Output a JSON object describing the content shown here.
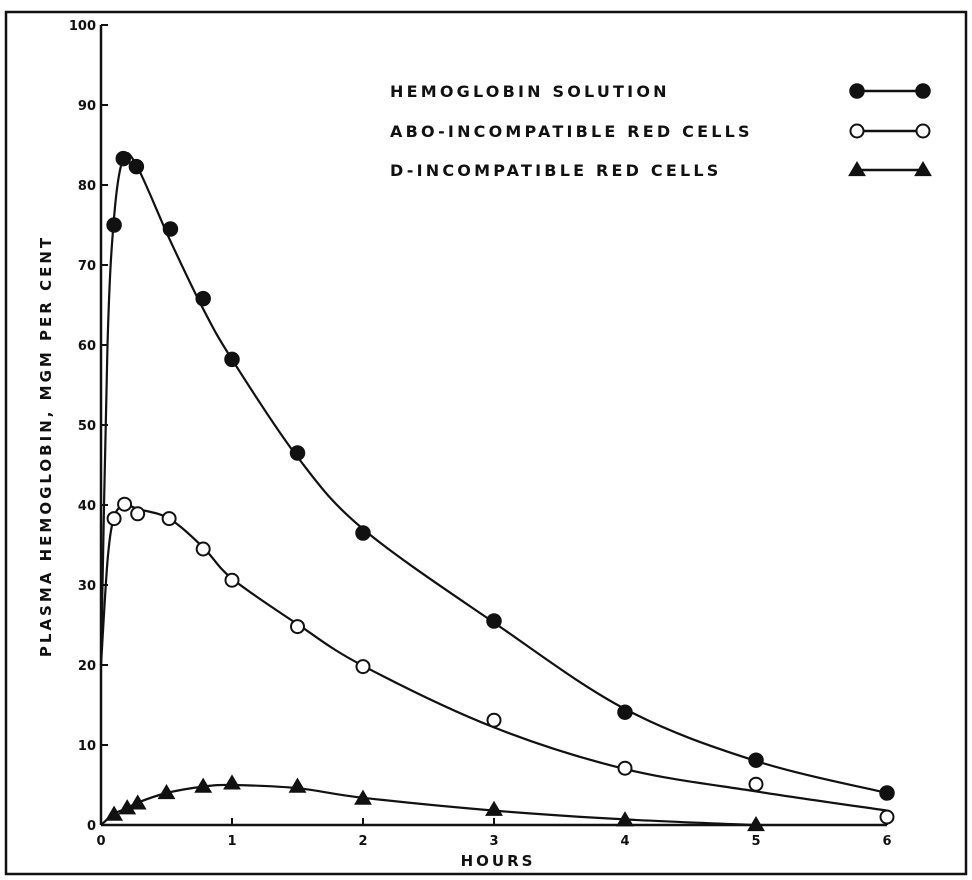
{
  "chart_data": {
    "type": "line",
    "title": "",
    "xlabel": "HOURS",
    "ylabel": "PLASMA HEMOGLOBIN, MGM PER CENT",
    "xlim": [
      0,
      6
    ],
    "ylim": [
      0,
      100
    ],
    "x_ticks": [
      0,
      1,
      2,
      3,
      4,
      5,
      6
    ],
    "y_ticks": [
      0,
      10,
      20,
      30,
      40,
      50,
      60,
      70,
      80,
      90,
      100
    ],
    "grid": false,
    "legend_position": "top-right",
    "series": [
      {
        "name": "HEMOGLOBIN SOLUTION",
        "marker": "filled-circle",
        "x": [
          0.1,
          0.17,
          0.27,
          0.53,
          0.78,
          1.0,
          1.5,
          2.0,
          3.0,
          4.0,
          5.0,
          6.0
        ],
        "y": [
          75,
          83.3,
          82.3,
          74.5,
          65.8,
          58.2,
          46.5,
          36.5,
          25.5,
          14.1,
          8.1,
          4.0
        ],
        "curve": [
          [
            0,
            20
          ],
          [
            0.05,
            60
          ],
          [
            0.1,
            76
          ],
          [
            0.17,
            83.3
          ],
          [
            0.27,
            82.5
          ],
          [
            0.53,
            73
          ],
          [
            0.78,
            64.5
          ],
          [
            1.0,
            58.2
          ],
          [
            1.5,
            46
          ],
          [
            2.0,
            37
          ],
          [
            3.0,
            25.3
          ],
          [
            4.0,
            14.5
          ],
          [
            5.0,
            8.0
          ],
          [
            6.0,
            4.0
          ]
        ]
      },
      {
        "name": "ABO-INCOMPATIBLE RED CELLS",
        "marker": "open-circle",
        "x": [
          0.1,
          0.18,
          0.28,
          0.52,
          0.78,
          1.0,
          1.5,
          2.0,
          3.0,
          4.0,
          5.0,
          6.0
        ],
        "y": [
          38.3,
          40.1,
          38.9,
          38.3,
          34.5,
          30.6,
          24.8,
          19.8,
          13.1,
          7.1,
          5.1,
          1.0
        ],
        "curve": [
          [
            0,
            20
          ],
          [
            0.05,
            33
          ],
          [
            0.1,
            38.5
          ],
          [
            0.18,
            40
          ],
          [
            0.28,
            39.5
          ],
          [
            0.52,
            38.3
          ],
          [
            0.78,
            34.7
          ],
          [
            1.0,
            30.8
          ],
          [
            1.5,
            25.1
          ],
          [
            2.0,
            19.9
          ],
          [
            3.0,
            12.2
          ],
          [
            4.0,
            7.0
          ],
          [
            5.0,
            4.2
          ],
          [
            6.0,
            1.8
          ]
        ]
      },
      {
        "name": "D-INCOMPATIBLE RED CELLS",
        "marker": "filled-triangle",
        "x": [
          0.1,
          0.2,
          0.28,
          0.5,
          0.78,
          1.0,
          1.5,
          2.0,
          3.0,
          4.0,
          5.0
        ],
        "y": [
          1.3,
          2.1,
          2.7,
          4.0,
          4.8,
          5.2,
          4.8,
          3.3,
          1.9,
          0.6,
          0.0
        ],
        "curve": [
          [
            0,
            0
          ],
          [
            0.1,
            1.4
          ],
          [
            0.2,
            2.1
          ],
          [
            0.28,
            2.8
          ],
          [
            0.5,
            4.0
          ],
          [
            0.78,
            4.8
          ],
          [
            1.0,
            5.0
          ],
          [
            1.5,
            4.6
          ],
          [
            2.0,
            3.4
          ],
          [
            3.0,
            1.8
          ],
          [
            4.0,
            0.7
          ],
          [
            5.0,
            0.0
          ]
        ]
      }
    ]
  }
}
